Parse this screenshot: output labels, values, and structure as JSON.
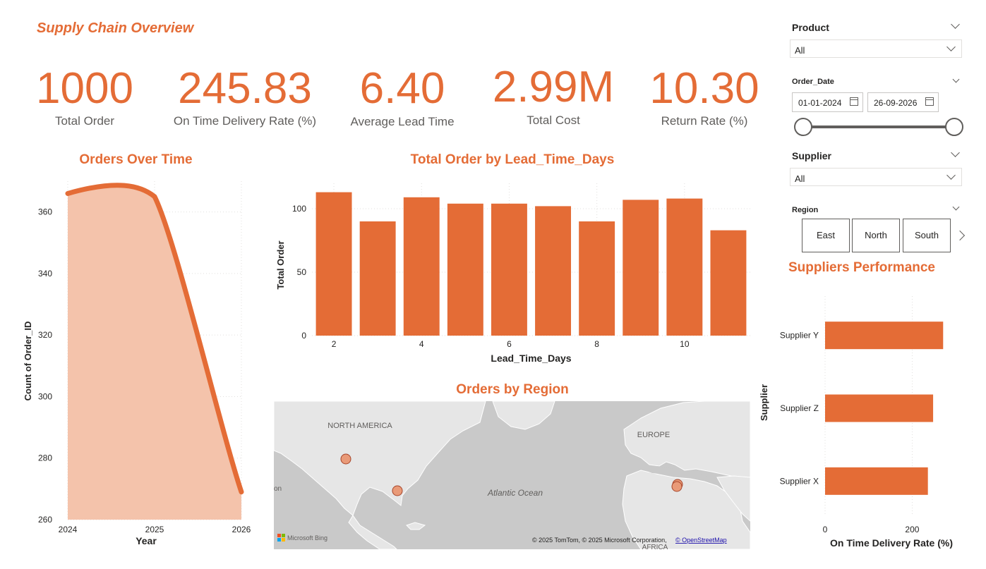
{
  "dashboard": {
    "title": "Supply Chain Overview"
  },
  "kpis": [
    {
      "value": "1000",
      "label": "Total Order"
    },
    {
      "value": "245.83",
      "label": "On Time Delivery Rate (%)"
    },
    {
      "value": "6.40",
      "label": "Average Lead Time"
    },
    {
      "value": "2.99M",
      "label": "Total Cost"
    },
    {
      "value": "10.30",
      "label": "Return Rate (%)"
    }
  ],
  "filters": {
    "product": {
      "header": "Product",
      "value": "All"
    },
    "order_date": {
      "header": "Order_Date",
      "start": "01-01-2024",
      "end": "26-09-2026"
    },
    "supplier": {
      "header": "Supplier",
      "value": "All"
    },
    "region": {
      "header": "Region",
      "tiles": [
        "East",
        "North",
        "South"
      ]
    }
  },
  "map": {
    "title": "Orders by Region",
    "labels": {
      "north_america": "NORTH AMERICA",
      "europe": "EUROPE",
      "atlantic": "Atlantic Ocean",
      "africa": "AFRICA",
      "edge": "on"
    },
    "attribution": "© 2025 TomTom, © 2025 Microsoft Corporation, ",
    "osm_link": "© OpenStreetMap",
    "bing": "Microsoft Bing"
  },
  "chart_data": [
    {
      "type": "area",
      "title": "Orders Over Time",
      "xlabel": "Year",
      "ylabel": "Count of Order_ID",
      "x": [
        2024,
        2025,
        2026
      ],
      "series": [
        {
          "values": [
            366,
            365,
            269
          ]
        }
      ],
      "ylim": [
        260,
        370
      ],
      "yticks": [
        260,
        280,
        300,
        320,
        340,
        360
      ],
      "xticks": [
        "2024",
        "2025",
        "2026"
      ],
      "color": "#e46c36",
      "fill": "#f4c3ab"
    },
    {
      "type": "bar",
      "title": "Total Order by Lead_Time_Days",
      "xlabel": "Lead_Time_Days",
      "ylabel": "Total Order",
      "categories": [
        2,
        3,
        4,
        5,
        6,
        7,
        8,
        9,
        10,
        11
      ],
      "values": [
        113,
        90,
        109,
        104,
        104,
        102,
        90,
        107,
        108,
        83
      ],
      "ylim": [
        0,
        120
      ],
      "yticks": [
        0,
        50,
        100
      ],
      "xticks": [
        "2",
        "4",
        "6",
        "8",
        "10"
      ],
      "color": "#e46c36"
    },
    {
      "type": "bar",
      "orientation": "horizontal",
      "title": "Suppliers Performance",
      "xlabel": "On Time Delivery Rate (%)",
      "ylabel": "Supplier",
      "categories": [
        "Supplier Y",
        "Supplier Z",
        "Supplier X"
      ],
      "values": [
        271,
        248,
        236
      ],
      "xlim": [
        0,
        290
      ],
      "xticks": [
        "0",
        "200"
      ],
      "color": "#e46c36"
    }
  ]
}
